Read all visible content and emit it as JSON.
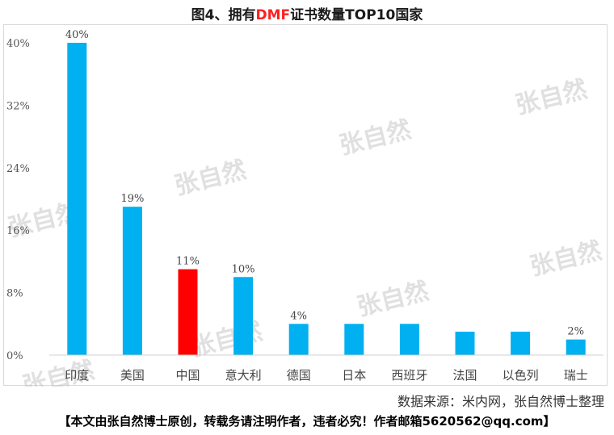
{
  "title": {
    "prefix": "图4、拥有",
    "highlight": "DMF",
    "suffix": "证书数量TOP10国家"
  },
  "source": "数据来源：米内网，张自然博士整理",
  "footer": "【本文由张自然博士原创，转载务请注明作者，违者必究！作者邮箱5620562@qq.com】",
  "watermark": "张自然",
  "colors": {
    "bar": "#00b0f0",
    "highlight_bar": "#ff0000"
  },
  "chart_data": {
    "type": "bar",
    "title": "图4、拥有DMF证书数量TOP10国家",
    "categories": [
      "印度",
      "美国",
      "中国",
      "意大利",
      "德国",
      "日本",
      "西班牙",
      "法国",
      "以色列",
      "瑞士"
    ],
    "values": [
      40,
      19,
      11,
      10,
      4,
      4,
      4,
      3,
      3,
      2
    ],
    "data_labels": [
      "40%",
      "19%",
      "11%",
      "10%",
      "4%",
      null,
      null,
      null,
      null,
      "2%"
    ],
    "highlight_category": "中国",
    "y_ticks": [
      "0%",
      "8%",
      "16%",
      "24%",
      "32%",
      "40%"
    ],
    "ylim": [
      0,
      40
    ],
    "unit": "%",
    "grid": false,
    "legend": "none"
  }
}
